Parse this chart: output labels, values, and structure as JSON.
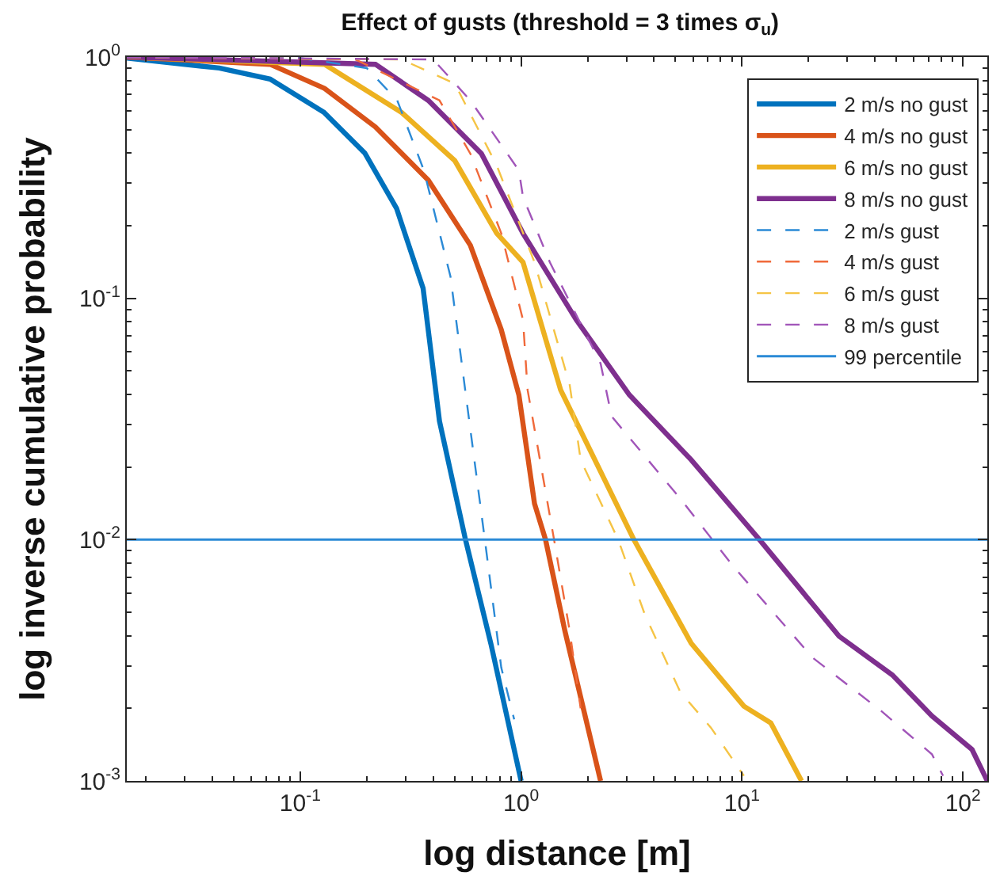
{
  "chart_data": {
    "type": "line",
    "title": "Effect of gusts (threshold = 3 times σ$_{u}$)",
    "xlabel": "log distance [m]",
    "ylabel": "log inverse cumulative probability",
    "log": "xy",
    "legend": "top right",
    "marker": "none",
    "xlim": [
      0.0164,
      129
    ],
    "ylim": [
      0.001,
      1
    ],
    "xticks": [
      {
        "value": 0.1,
        "label": "10$^{-1}$"
      },
      {
        "value": 1,
        "label": "10$^{0}$"
      },
      {
        "value": 10,
        "label": "10$^{1}$"
      },
      {
        "value": 100,
        "label": "10$^{2}$"
      }
    ],
    "yticks": [
      {
        "value": 0.001,
        "label": "10$^{-3}$"
      },
      {
        "value": 0.01,
        "label": "10$^{-2}$"
      },
      {
        "value": 0.1,
        "label": "10$^{-1}$"
      },
      {
        "value": 1,
        "label": "10$^{0}$"
      }
    ],
    "series": [
      {
        "name": "2 m/s no gust",
        "color": "#0072bd",
        "line_style": "solid",
        "x": [
          0.0164,
          0.043,
          0.073,
          0.128,
          0.196,
          0.273,
          0.36,
          0.427,
          0.56,
          0.73,
          1.0
        ],
        "values": [
          0.99,
          0.9,
          0.81,
          0.59,
          0.4,
          0.236,
          0.11,
          0.031,
          0.01,
          0.0037,
          0.001
        ]
      },
      {
        "name": "4 m/s no gust",
        "color": "#d95319",
        "line_style": "solid",
        "x": [
          0.0164,
          0.073,
          0.129,
          0.219,
          0.38,
          0.589,
          0.813,
          0.977,
          1.15,
          1.29,
          1.58,
          2.29
        ],
        "values": [
          1,
          0.933,
          0.741,
          0.513,
          0.309,
          0.166,
          0.0741,
          0.0398,
          0.0141,
          0.01,
          0.00417,
          0.001
        ]
      },
      {
        "name": "6 m/s no gust",
        "color": "#edb120",
        "line_style": "solid",
        "x": [
          0.0164,
          0.129,
          0.288,
          0.501,
          0.776,
          1.02,
          1.51,
          3.24,
          5.89,
          10.2,
          13.5,
          18.6
        ],
        "values": [
          1,
          0.933,
          0.589,
          0.372,
          0.186,
          0.141,
          0.0417,
          0.01,
          0.00372,
          0.00204,
          0.00174,
          0.001
        ]
      },
      {
        "name": "8 m/s no gust",
        "color": "#7e2f8e",
        "line_style": "solid",
        "x": [
          0.0164,
          0.219,
          0.38,
          0.661,
          1.02,
          1.78,
          3.09,
          5.89,
          12.0,
          27.5,
          47.9,
          72.4,
          110,
          129
        ],
        "values": [
          1,
          0.933,
          0.661,
          0.398,
          0.186,
          0.0813,
          0.0398,
          0.0214,
          0.01,
          0.00398,
          0.00275,
          0.00186,
          0.00135,
          0.001
        ]
      },
      {
        "name": "2 m/s gust",
        "color": "#2b8ad6",
        "line_style": "dashed",
        "x": [
          0.0164,
          0.1,
          0.2,
          0.275,
          0.363,
          0.479,
          0.562,
          0.692,
          0.813,
          0.93
        ],
        "values": [
          1,
          0.99,
          0.9,
          0.661,
          0.339,
          0.123,
          0.0398,
          0.00933,
          0.00295,
          0.0018
        ]
      },
      {
        "name": "4 m/s gust",
        "color": "#f0693a",
        "line_style": "dashed",
        "x": [
          0.0164,
          0.178,
          0.427,
          0.589,
          0.813,
          1.02,
          1.07,
          1.41,
          1.66,
          1.86
        ],
        "values": [
          1,
          0.977,
          0.661,
          0.398,
          0.186,
          0.0813,
          0.0417,
          0.01,
          0.00417,
          0.002
        ]
      },
      {
        "name": "6 m/s gust",
        "color": "#f5c445",
        "line_style": "dashed",
        "x": [
          0.0164,
          0.288,
          0.501,
          0.776,
          1.15,
          1.66,
          1.86,
          2.75,
          3.63,
          5.25,
          7.24,
          10.2
        ],
        "values": [
          1,
          0.977,
          0.776,
          0.355,
          0.141,
          0.0437,
          0.0214,
          0.01,
          0.0049,
          0.00234,
          0.00166,
          0.00105
        ]
      },
      {
        "name": "8 m/s gust",
        "color": "#a155b9",
        "line_style": "dashed",
        "x": [
          0.0164,
          0.4,
          0.589,
          0.977,
          1.02,
          1.35,
          2.29,
          2.57,
          5.25,
          9.12,
          20.9,
          42.7,
          72.4,
          81.3
        ],
        "values": [
          1,
          0.977,
          0.661,
          0.339,
          0.263,
          0.141,
          0.0537,
          0.0324,
          0.0148,
          0.00776,
          0.00324,
          0.00195,
          0.00129,
          0.00105
        ]
      }
    ],
    "ref_lines": [
      {
        "axis": "y",
        "value": 0.01,
        "label": "99 percentile",
        "color": "#2b8ad6",
        "line_style": "solid"
      }
    ]
  }
}
